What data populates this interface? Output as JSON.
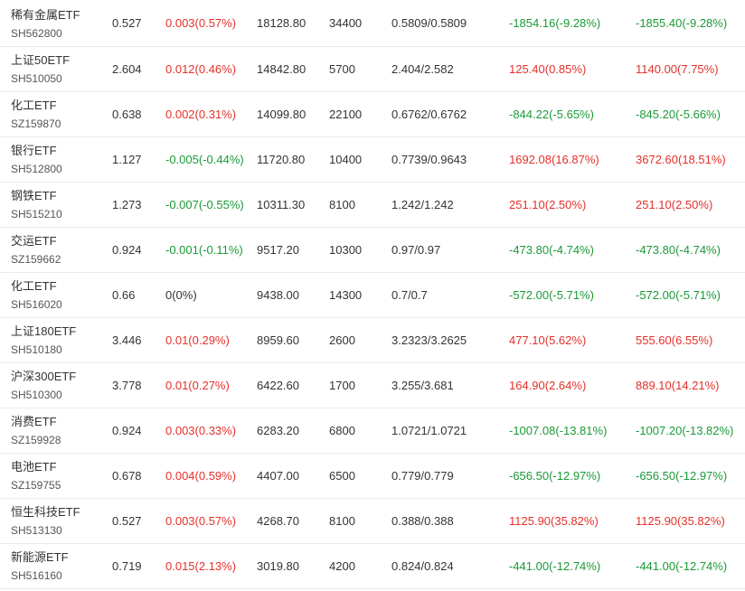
{
  "colors": {
    "up": "#e4312b",
    "down": "#1a9a37",
    "flat": "#333333"
  },
  "rows": [
    {
      "name": "稀有金属ETF",
      "code": "SH562800",
      "price": "0.527",
      "change": "0.003(0.57%)",
      "change_dir": "up",
      "amount": "18128.80",
      "volume": "34400",
      "range": "0.5809/0.5809",
      "pnl1": "-1854.16(-9.28%)",
      "pnl1_dir": "down",
      "pnl2": "-1855.40(-9.28%)",
      "pnl2_dir": "down"
    },
    {
      "name": "上证50ETF",
      "code": "SH510050",
      "price": "2.604",
      "change": "0.012(0.46%)",
      "change_dir": "up",
      "amount": "14842.80",
      "volume": "5700",
      "range": "2.404/2.582",
      "pnl1": "125.40(0.85%)",
      "pnl1_dir": "up",
      "pnl2": "1140.00(7.75%)",
      "pnl2_dir": "up"
    },
    {
      "name": "化工ETF",
      "code": "SZ159870",
      "price": "0.638",
      "change": "0.002(0.31%)",
      "change_dir": "up",
      "amount": "14099.80",
      "volume": "22100",
      "range": "0.6762/0.6762",
      "pnl1": "-844.22(-5.65%)",
      "pnl1_dir": "down",
      "pnl2": "-845.20(-5.66%)",
      "pnl2_dir": "down"
    },
    {
      "name": "银行ETF",
      "code": "SH512800",
      "price": "1.127",
      "change": "-0.005(-0.44%)",
      "change_dir": "down",
      "amount": "11720.80",
      "volume": "10400",
      "range": "0.7739/0.9643",
      "pnl1": "1692.08(16.87%)",
      "pnl1_dir": "up",
      "pnl2": "3672.60(18.51%)",
      "pnl2_dir": "up"
    },
    {
      "name": "钢铁ETF",
      "code": "SH515210",
      "price": "1.273",
      "change": "-0.007(-0.55%)",
      "change_dir": "down",
      "amount": "10311.30",
      "volume": "8100",
      "range": "1.242/1.242",
      "pnl1": "251.10(2.50%)",
      "pnl1_dir": "up",
      "pnl2": "251.10(2.50%)",
      "pnl2_dir": "up"
    },
    {
      "name": "交运ETF",
      "code": "SZ159662",
      "price": "0.924",
      "change": "-0.001(-0.11%)",
      "change_dir": "down",
      "amount": "9517.20",
      "volume": "10300",
      "range": "0.97/0.97",
      "pnl1": "-473.80(-4.74%)",
      "pnl1_dir": "down",
      "pnl2": "-473.80(-4.74%)",
      "pnl2_dir": "down"
    },
    {
      "name": "化工ETF",
      "code": "SH516020",
      "price": "0.66",
      "change": "0(0%)",
      "change_dir": "flat",
      "amount": "9438.00",
      "volume": "14300",
      "range": "0.7/0.7",
      "pnl1": "-572.00(-5.71%)",
      "pnl1_dir": "down",
      "pnl2": "-572.00(-5.71%)",
      "pnl2_dir": "down"
    },
    {
      "name": "上证180ETF",
      "code": "SH510180",
      "price": "3.446",
      "change": "0.01(0.29%)",
      "change_dir": "up",
      "amount": "8959.60",
      "volume": "2600",
      "range": "3.2323/3.2625",
      "pnl1": "477.10(5.62%)",
      "pnl1_dir": "up",
      "pnl2": "555.60(6.55%)",
      "pnl2_dir": "up"
    },
    {
      "name": "沪深300ETF",
      "code": "SH510300",
      "price": "3.778",
      "change": "0.01(0.27%)",
      "change_dir": "up",
      "amount": "6422.60",
      "volume": "1700",
      "range": "3.255/3.681",
      "pnl1": "164.90(2.64%)",
      "pnl1_dir": "up",
      "pnl2": "889.10(14.21%)",
      "pnl2_dir": "up"
    },
    {
      "name": "消费ETF",
      "code": "SZ159928",
      "price": "0.924",
      "change": "0.003(0.33%)",
      "change_dir": "up",
      "amount": "6283.20",
      "volume": "6800",
      "range": "1.0721/1.0721",
      "pnl1": "-1007.08(-13.81%)",
      "pnl1_dir": "down",
      "pnl2": "-1007.20(-13.82%)",
      "pnl2_dir": "down"
    },
    {
      "name": "电池ETF",
      "code": "SZ159755",
      "price": "0.678",
      "change": "0.004(0.59%)",
      "change_dir": "up",
      "amount": "4407.00",
      "volume": "6500",
      "range": "0.779/0.779",
      "pnl1": "-656.50(-12.97%)",
      "pnl1_dir": "down",
      "pnl2": "-656.50(-12.97%)",
      "pnl2_dir": "down"
    },
    {
      "name": "恒生科技ETF",
      "code": "SH513130",
      "price": "0.527",
      "change": "0.003(0.57%)",
      "change_dir": "up",
      "amount": "4268.70",
      "volume": "8100",
      "range": "0.388/0.388",
      "pnl1": "1125.90(35.82%)",
      "pnl1_dir": "up",
      "pnl2": "1125.90(35.82%)",
      "pnl2_dir": "up"
    },
    {
      "name": "新能源ETF",
      "code": "SH516160",
      "price": "0.719",
      "change": "0.015(2.13%)",
      "change_dir": "up",
      "amount": "3019.80",
      "volume": "4200",
      "range": "0.824/0.824",
      "pnl1": "-441.00(-12.74%)",
      "pnl1_dir": "down",
      "pnl2": "-441.00(-12.74%)",
      "pnl2_dir": "down"
    }
  ]
}
